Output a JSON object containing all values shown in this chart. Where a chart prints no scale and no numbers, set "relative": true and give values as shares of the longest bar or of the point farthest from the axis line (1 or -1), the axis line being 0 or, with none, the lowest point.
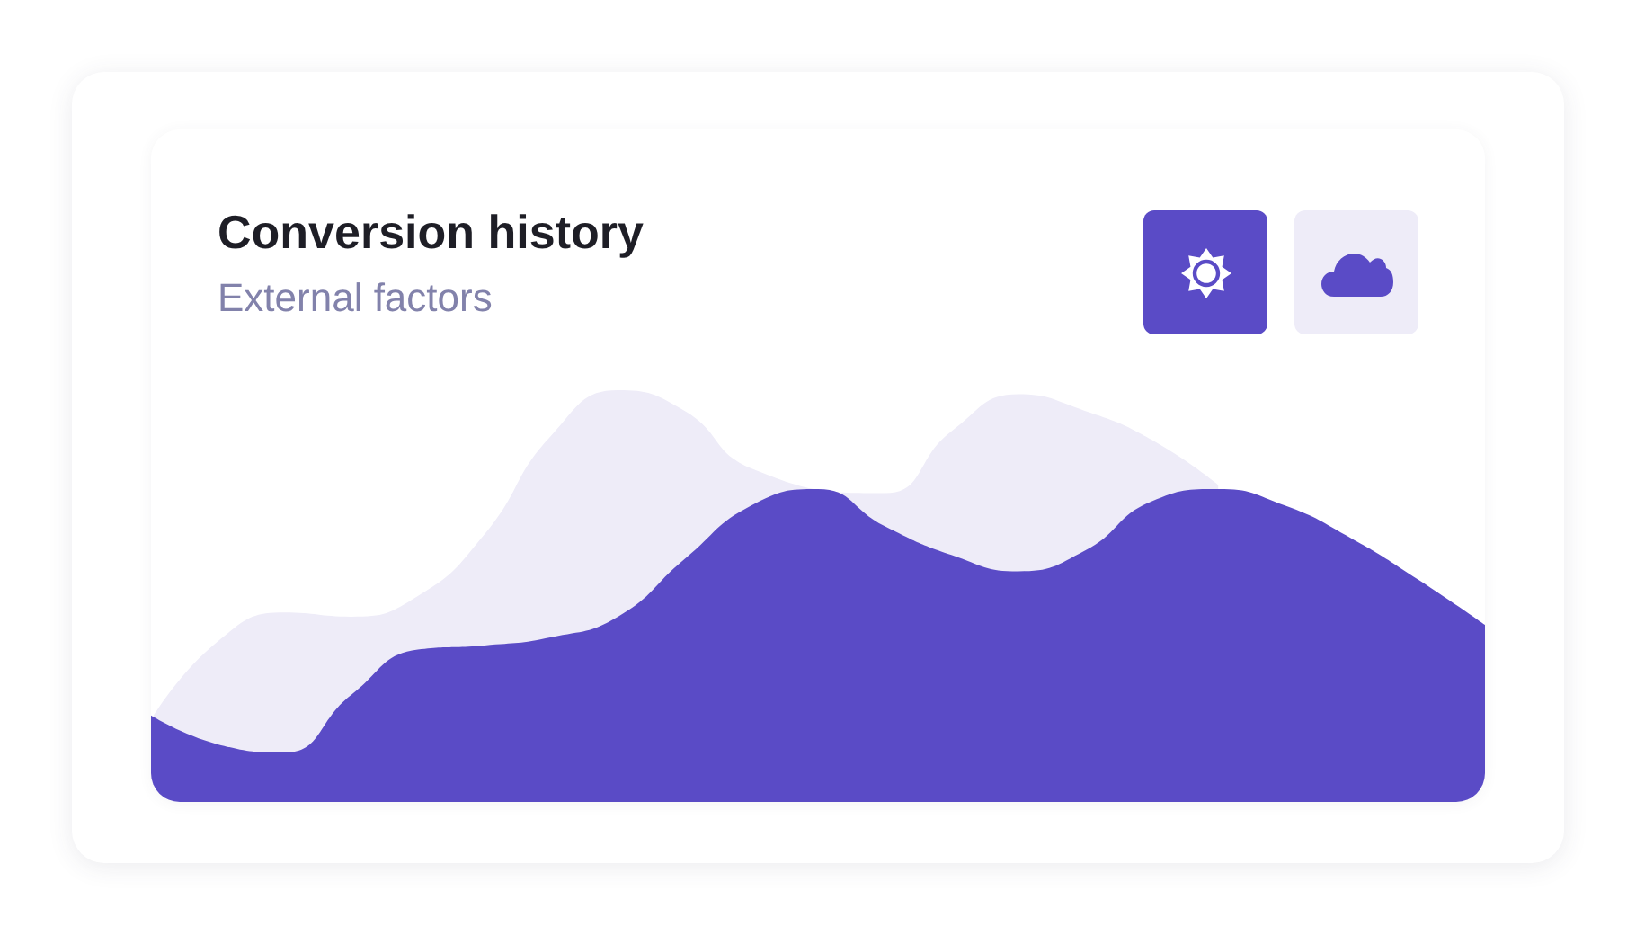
{
  "chart_data": {
    "type": "area",
    "title": "Conversion history",
    "subtitle": "External factors",
    "relative": true,
    "marker": "none",
    "categories": [
      null,
      null,
      null,
      null,
      null,
      null,
      null,
      null,
      null,
      null,
      null,
      null,
      null,
      null,
      null,
      null,
      null,
      null,
      null,
      null,
      null
    ],
    "series": [
      {
        "color": "#eeecf8",
        "values": [
          0.2,
          0.39,
          0.46,
          0.45,
          0.5,
          0.65,
          0.89,
          1.0,
          0.95,
          0.81,
          null,
          0.75,
          0.9,
          0.99,
          0.95,
          0.88,
          0.77,
          null,
          null,
          null,
          null
        ]
      },
      {
        "color": "#5a4bc6",
        "values": [
          0.21,
          0.14,
          0.12,
          0.26,
          0.37,
          0.38,
          0.4,
          0.45,
          0.59,
          0.72,
          0.76,
          0.67,
          0.6,
          0.56,
          0.61,
          0.73,
          0.76,
          0.72,
          0.64,
          0.54,
          0.43
        ]
      }
    ]
  }
}
